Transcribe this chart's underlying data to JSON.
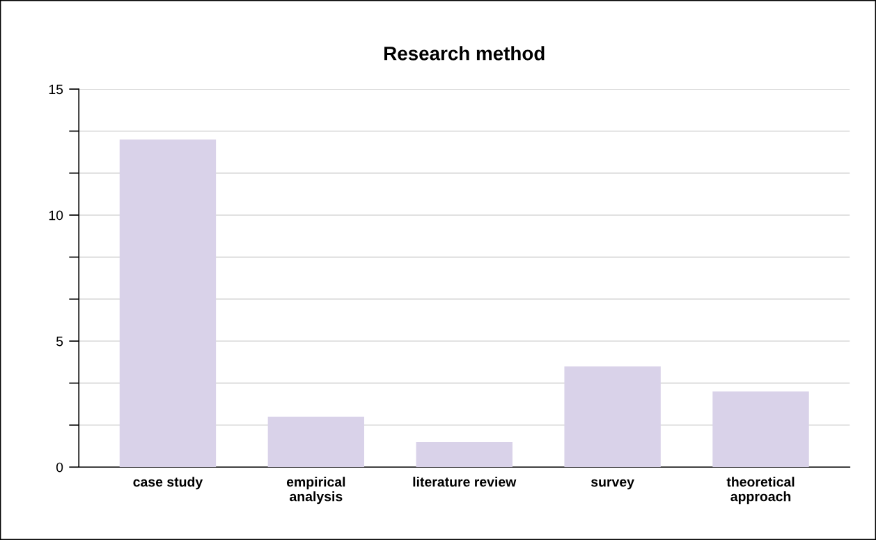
{
  "chart_data": {
    "type": "bar",
    "title": "Research method",
    "categories": [
      "case study",
      "empirical\nanalysis",
      "literature review",
      "survey",
      "theoretical\napproach"
    ],
    "values": [
      13,
      2,
      1,
      4,
      3
    ],
    "color": "#d9d2e9",
    "ylim": [
      0,
      15
    ],
    "yticks": [
      0,
      {
        "value": 1.667,
        "label": null
      },
      {
        "value": 3.333,
        "label": null
      },
      5,
      {
        "value": 6.667,
        "label": null
      },
      {
        "value": 8.333,
        "label": null
      },
      10,
      {
        "value": 11.667,
        "label": null
      },
      {
        "value": 13.333,
        "label": null
      },
      15
    ],
    "grid": "y"
  }
}
